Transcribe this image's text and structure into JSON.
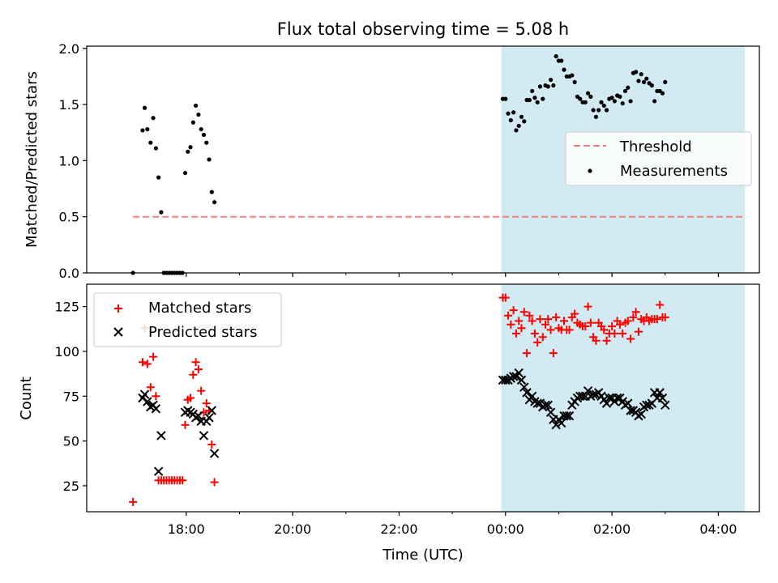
{
  "figure": {
    "title": "Flux total observing time = 5.08 h",
    "xlabel": "Time (UTC)",
    "x_ticks": [
      {
        "value": 1,
        "label": "18:00"
      },
      {
        "value": 3,
        "label": "20:00"
      },
      {
        "value": 5,
        "label": "22:00"
      },
      {
        "value": 7,
        "label": "00:00"
      },
      {
        "value": 9,
        "label": "02:00"
      },
      {
        "value": 11,
        "label": "04:00"
      }
    ],
    "x_minor_ticks": [
      2,
      4,
      6,
      8,
      10
    ],
    "xlim": [
      -0.87,
      11.77
    ],
    "shaded_region": {
      "x": [
        6.92,
        11.5
      ],
      "color": "#add8e6"
    }
  },
  "chart_data": [
    {
      "type": "scatter",
      "ylabel": "Matched/Predicted stars",
      "ylim": [
        0,
        2.02
      ],
      "y_ticks": [
        0.0,
        0.5,
        1.0,
        1.5,
        2.0
      ],
      "y_tick_labels": [
        "0.0",
        "0.5",
        "1.0",
        "1.5",
        "2.0"
      ],
      "legend": {
        "placement": "center-right",
        "entries": [
          "Threshold",
          "Measurements"
        ]
      },
      "series": [
        {
          "name": "Threshold",
          "kind": "dashed-line",
          "color": "#f08080",
          "x": [
            0.0,
            11.5
          ],
          "y": [
            0.5,
            0.5
          ]
        },
        {
          "name": "Measurements",
          "kind": "dot",
          "color": "#000000",
          "points": [
            [
              0.0,
              0.0
            ],
            [
              0.18,
              1.27
            ],
            [
              0.22,
              1.47
            ],
            [
              0.27,
              1.28
            ],
            [
              0.33,
              1.16
            ],
            [
              0.38,
              1.38
            ],
            [
              0.43,
              1.11
            ],
            [
              0.48,
              0.85
            ],
            [
              0.53,
              0.54
            ],
            [
              0.58,
              0.0
            ],
            [
              0.63,
              0.0
            ],
            [
              0.68,
              0.0
            ],
            [
              0.73,
              0.0
            ],
            [
              0.78,
              0.0
            ],
            [
              0.83,
              0.0
            ],
            [
              0.88,
              0.0
            ],
            [
              0.93,
              0.0
            ],
            [
              0.98,
              0.89
            ],
            [
              1.03,
              1.08
            ],
            [
              1.08,
              1.12
            ],
            [
              1.13,
              1.34
            ],
            [
              1.18,
              1.49
            ],
            [
              1.23,
              1.41
            ],
            [
              1.28,
              1.28
            ],
            [
              1.33,
              1.23
            ],
            [
              1.38,
              1.16
            ],
            [
              1.43,
              1.01
            ],
            [
              1.48,
              0.72
            ],
            [
              1.53,
              0.63
            ],
            [
              6.95,
              1.55
            ],
            [
              7.0,
              1.55
            ],
            [
              7.05,
              1.42
            ],
            [
              7.1,
              1.36
            ],
            [
              7.15,
              1.43
            ],
            [
              7.2,
              1.27
            ],
            [
              7.25,
              1.31
            ],
            [
              7.3,
              1.39
            ],
            [
              7.35,
              1.35
            ],
            [
              7.4,
              1.54
            ],
            [
              7.45,
              1.54
            ],
            [
              7.5,
              1.62
            ],
            [
              7.55,
              1.56
            ],
            [
              7.6,
              1.52
            ],
            [
              7.65,
              1.66
            ],
            [
              7.7,
              1.55
            ],
            [
              7.75,
              1.67
            ],
            [
              7.8,
              1.66
            ],
            [
              7.85,
              1.72
            ],
            [
              7.9,
              1.67
            ],
            [
              7.95,
              1.93
            ],
            [
              8.0,
              1.89
            ],
            [
              8.05,
              1.89
            ],
            [
              8.1,
              1.81
            ],
            [
              8.15,
              1.75
            ],
            [
              8.2,
              1.75
            ],
            [
              8.25,
              1.76
            ],
            [
              8.3,
              1.7
            ],
            [
              8.35,
              1.57
            ],
            [
              8.4,
              1.55
            ],
            [
              8.45,
              1.52
            ],
            [
              8.5,
              1.52
            ],
            [
              8.55,
              1.6
            ],
            [
              8.6,
              1.57
            ],
            [
              8.65,
              1.45
            ],
            [
              8.7,
              1.39
            ],
            [
              8.75,
              1.45
            ],
            [
              8.8,
              1.52
            ],
            [
              8.85,
              1.49
            ],
            [
              8.9,
              1.45
            ],
            [
              8.95,
              1.55
            ],
            [
              9.0,
              1.56
            ],
            [
              9.05,
              1.53
            ],
            [
              9.1,
              1.58
            ],
            [
              9.15,
              1.57
            ],
            [
              9.2,
              1.51
            ],
            [
              9.25,
              1.62
            ],
            [
              9.3,
              1.65
            ],
            [
              9.35,
              1.53
            ],
            [
              9.4,
              1.78
            ],
            [
              9.45,
              1.79
            ],
            [
              9.5,
              1.71
            ],
            [
              9.55,
              1.77
            ],
            [
              9.6,
              1.7
            ],
            [
              9.65,
              1.73
            ],
            [
              9.7,
              1.69
            ],
            [
              9.75,
              1.67
            ],
            [
              9.8,
              1.53
            ],
            [
              9.85,
              1.62
            ],
            [
              9.9,
              1.62
            ],
            [
              9.95,
              1.6
            ],
            [
              10.0,
              1.7
            ]
          ]
        }
      ]
    },
    {
      "type": "scatter",
      "ylabel": "Count",
      "ylim": [
        10.5,
        137.5
      ],
      "y_ticks": [
        25,
        50,
        75,
        100,
        125
      ],
      "y_tick_labels": [
        "25",
        "50",
        "75",
        "100",
        "125"
      ],
      "legend": {
        "placement": "top-left",
        "entries": [
          "Matched stars",
          "Predicted stars"
        ]
      },
      "series": [
        {
          "name": "Matched stars",
          "marker": "plus",
          "color": "#ff0000",
          "points": [
            [
              0.0,
              16
            ],
            [
              0.18,
              94
            ],
            [
              0.22,
              113
            ],
            [
              0.27,
              93
            ],
            [
              0.33,
              80
            ],
            [
              0.38,
              97
            ],
            [
              0.43,
              75
            ],
            [
              0.48,
              28
            ],
            [
              0.53,
              28
            ],
            [
              0.58,
              28
            ],
            [
              0.63,
              28
            ],
            [
              0.68,
              28
            ],
            [
              0.73,
              28
            ],
            [
              0.78,
              28
            ],
            [
              0.83,
              28
            ],
            [
              0.88,
              28
            ],
            [
              0.93,
              28
            ],
            [
              0.98,
              59
            ],
            [
              1.03,
              73
            ],
            [
              1.08,
              74
            ],
            [
              1.13,
              87
            ],
            [
              1.18,
              94
            ],
            [
              1.23,
              90
            ],
            [
              1.28,
              78
            ],
            [
              1.33,
              66
            ],
            [
              1.38,
              71
            ],
            [
              1.43,
              67
            ],
            [
              1.48,
              48
            ],
            [
              1.53,
              27
            ],
            [
              6.95,
              130
            ],
            [
              7.0,
              130
            ],
            [
              7.05,
              120
            ],
            [
              7.1,
              115
            ],
            [
              7.15,
              123
            ],
            [
              7.2,
              110
            ],
            [
              7.25,
              117
            ],
            [
              7.3,
              113
            ],
            [
              7.35,
              122
            ],
            [
              7.4,
              99
            ],
            [
              7.45,
              120
            ],
            [
              7.5,
              117
            ],
            [
              7.55,
              110
            ],
            [
              7.6,
              105
            ],
            [
              7.65,
              118
            ],
            [
              7.7,
              108
            ],
            [
              7.75,
              115
            ],
            [
              7.8,
              118
            ],
            [
              7.85,
              112
            ],
            [
              7.9,
              99
            ],
            [
              7.95,
              119
            ],
            [
              8.0,
              113
            ],
            [
              8.05,
              112
            ],
            [
              8.1,
              117
            ],
            [
              8.15,
              112
            ],
            [
              8.2,
              112
            ],
            [
              8.25,
              119
            ],
            [
              8.3,
              121
            ],
            [
              8.35,
              116
            ],
            [
              8.4,
              115
            ],
            [
              8.45,
              114
            ],
            [
              8.5,
              114
            ],
            [
              8.55,
              125
            ],
            [
              8.6,
              116
            ],
            [
              8.65,
              108
            ],
            [
              8.7,
              106
            ],
            [
              8.75,
              116
            ],
            [
              8.8,
              114
            ],
            [
              8.85,
              112
            ],
            [
              8.9,
              106
            ],
            [
              8.95,
              110
            ],
            [
              9.0,
              114
            ],
            [
              9.05,
              110
            ],
            [
              9.1,
              117
            ],
            [
              9.15,
              115
            ],
            [
              9.2,
              110
            ],
            [
              9.25,
              116
            ],
            [
              9.3,
              117
            ],
            [
              9.35,
              107
            ],
            [
              9.4,
              119
            ],
            [
              9.45,
              122
            ],
            [
              9.5,
              111
            ],
            [
              9.55,
              118
            ],
            [
              9.6,
              117
            ],
            [
              9.65,
              119
            ],
            [
              9.7,
              117
            ],
            [
              9.75,
              118
            ],
            [
              9.8,
              118
            ],
            [
              9.85,
              118
            ],
            [
              9.9,
              126
            ],
            [
              9.95,
              119
            ],
            [
              10.0,
              119
            ]
          ]
        },
        {
          "name": "Predicted stars",
          "marker": "x",
          "color": "#000000",
          "points": [
            [
              0.18,
              74
            ],
            [
              0.22,
              76
            ],
            [
              0.27,
              72
            ],
            [
              0.33,
              69
            ],
            [
              0.38,
              70
            ],
            [
              0.43,
              68
            ],
            [
              0.48,
              33
            ],
            [
              0.53,
              53
            ],
            [
              0.98,
              66
            ],
            [
              1.03,
              67
            ],
            [
              1.08,
              66
            ],
            [
              1.13,
              65
            ],
            [
              1.18,
              63
            ],
            [
              1.23,
              64
            ],
            [
              1.28,
              61
            ],
            [
              1.33,
              53
            ],
            [
              1.38,
              61
            ],
            [
              1.43,
              63
            ],
            [
              1.48,
              67
            ],
            [
              1.53,
              43
            ],
            [
              6.95,
              84
            ],
            [
              7.0,
              84
            ],
            [
              7.05,
              84
            ],
            [
              7.1,
              85
            ],
            [
              7.15,
              86
            ],
            [
              7.2,
              86
            ],
            [
              7.25,
              88
            ],
            [
              7.3,
              84
            ],
            [
              7.35,
              80
            ],
            [
              7.4,
              77
            ],
            [
              7.45,
              73
            ],
            [
              7.5,
              75
            ],
            [
              7.55,
              72
            ],
            [
              7.6,
              71
            ],
            [
              7.65,
              71
            ],
            [
              7.7,
              69
            ],
            [
              7.75,
              70
            ],
            [
              7.8,
              70
            ],
            [
              7.85,
              66
            ],
            [
              7.9,
              62
            ],
            [
              7.95,
              59
            ],
            [
              8.0,
              62
            ],
            [
              8.05,
              60
            ],
            [
              8.1,
              64
            ],
            [
              8.15,
              64
            ],
            [
              8.2,
              64
            ],
            [
              8.25,
              70
            ],
            [
              8.3,
              72
            ],
            [
              8.35,
              74
            ],
            [
              8.4,
              75
            ],
            [
              8.45,
              75
            ],
            [
              8.5,
              75
            ],
            [
              8.55,
              78
            ],
            [
              8.6,
              75
            ],
            [
              8.65,
              76
            ],
            [
              8.7,
              76
            ],
            [
              8.75,
              77
            ],
            [
              8.8,
              75
            ],
            [
              8.85,
              73
            ],
            [
              8.9,
              71
            ],
            [
              8.95,
              74
            ],
            [
              9.0,
              74
            ],
            [
              9.05,
              72
            ],
            [
              9.1,
              74
            ],
            [
              9.15,
              74
            ],
            [
              9.2,
              72
            ],
            [
              9.25,
              70
            ],
            [
              9.3,
              71
            ],
            [
              9.35,
              67
            ],
            [
              9.4,
              67
            ],
            [
              9.45,
              66
            ],
            [
              9.5,
              64
            ],
            [
              9.55,
              65
            ],
            [
              9.6,
              69
            ],
            [
              9.65,
              70
            ],
            [
              9.7,
              70
            ],
            [
              9.75,
              71
            ],
            [
              9.8,
              77
            ],
            [
              9.85,
              74
            ],
            [
              9.9,
              77
            ],
            [
              9.95,
              74
            ],
            [
              10.0,
              70
            ]
          ]
        }
      ]
    }
  ]
}
